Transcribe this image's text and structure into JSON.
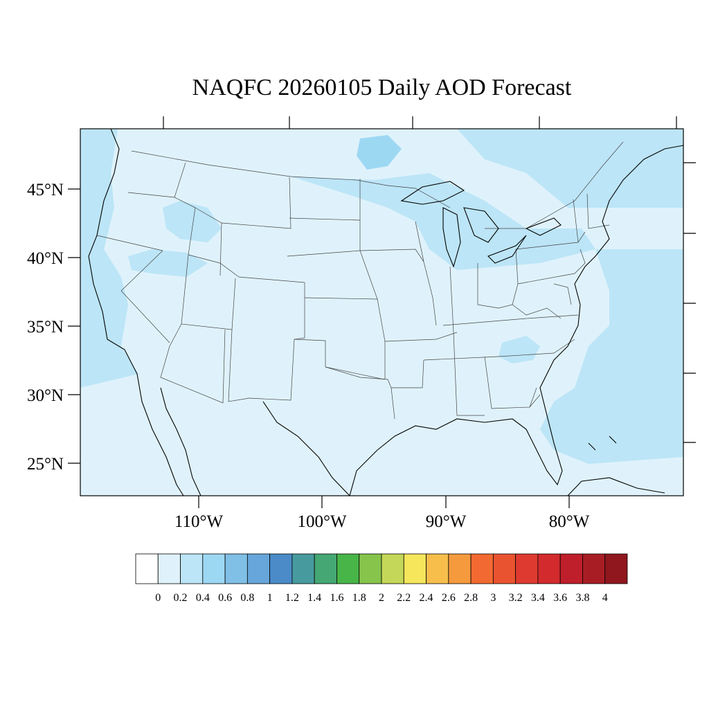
{
  "title": "NAQFC 20260105 Daily AOD Forecast",
  "map": {
    "projection": "lambert-conformal",
    "background_color": "#dff2fb",
    "lat_ticks": [
      {
        "value": 45,
        "label": "45°N"
      },
      {
        "value": 40,
        "label": "40°N"
      },
      {
        "value": 35,
        "label": "35°N"
      },
      {
        "value": 30,
        "label": "30°N"
      },
      {
        "value": 25,
        "label": "25°N"
      }
    ],
    "lon_ticks": [
      {
        "value": -110,
        "label": "110°W"
      },
      {
        "value": -100,
        "label": "100°W"
      },
      {
        "value": -90,
        "label": "90°W"
      },
      {
        "value": -80,
        "label": "80°W"
      }
    ]
  },
  "colorbar": {
    "levels": [
      "0",
      "0.2",
      "0.4",
      "0.6",
      "0.8",
      "1",
      "1.2",
      "1.4",
      "1.6",
      "1.8",
      "2",
      "2.2",
      "2.4",
      "2.6",
      "2.8",
      "3",
      "3.2",
      "3.4",
      "3.6",
      "3.8",
      "4"
    ],
    "colors": [
      "#ffffff",
      "#dff2fb",
      "#bce5f7",
      "#9dd8f3",
      "#80bfe6",
      "#67a6da",
      "#4a8bc8",
      "#479b9e",
      "#45a774",
      "#48b548",
      "#86c44c",
      "#c4d758",
      "#f5e65c",
      "#f7be4c",
      "#f59b3e",
      "#f26a31",
      "#ea5330",
      "#de3a2f",
      "#d32a2d",
      "#bf1f2a",
      "#a81d24",
      "#8f171d"
    ]
  }
}
